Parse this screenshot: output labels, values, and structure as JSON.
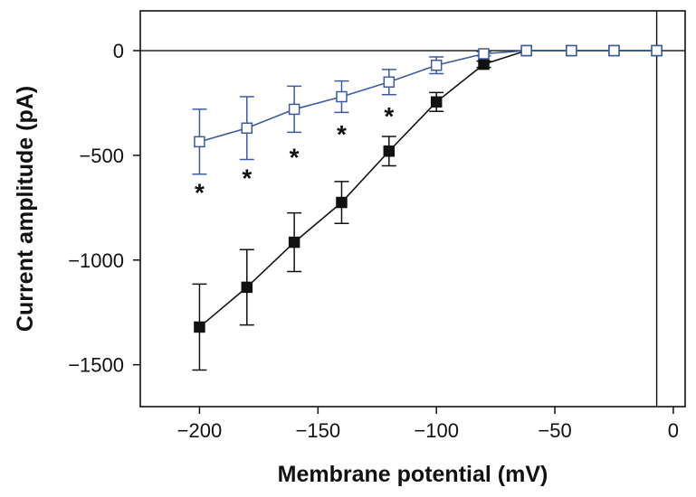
{
  "chart_data": {
    "type": "scatter",
    "title": "",
    "xlabel": "Membrane potential (mV)",
    "ylabel": "Current amplitude (pA)",
    "xlim": [
      -225,
      5
    ],
    "ylim": [
      -1700,
      190
    ],
    "xticks": [
      -200,
      -150,
      -100,
      -50,
      0
    ],
    "yticks": [
      0,
      -500,
      -1000,
      -1500
    ],
    "xtick_labels": [
      "−200",
      "−150",
      "−100",
      "−50",
      "0"
    ],
    "ytick_labels": [
      "0",
      "−500",
      "−1000",
      "−1500"
    ],
    "reference_lines": {
      "y": 0,
      "x": -7
    },
    "grid": false,
    "legend": "none",
    "series": [
      {
        "marker": "filled-square",
        "color": "#111111",
        "x": [
          -200,
          -180,
          -160,
          -140,
          -120,
          -100,
          -80,
          -62,
          -43,
          -25,
          -7
        ],
        "y": [
          -1320,
          -1130,
          -915,
          -725,
          -480,
          -245,
          -65,
          0,
          0,
          0,
          0
        ],
        "err": [
          205,
          180,
          140,
          100,
          70,
          45,
          15,
          0,
          0,
          0,
          0
        ]
      },
      {
        "marker": "open-square",
        "color": "#3d5a9e",
        "x": [
          -200,
          -180,
          -160,
          -140,
          -120,
          -100,
          -80,
          -62,
          -43,
          -25,
          -7
        ],
        "y": [
          -435,
          -370,
          -280,
          -220,
          -150,
          -70,
          -15,
          0,
          0,
          0,
          0
        ],
        "err": [
          155,
          150,
          110,
          75,
          60,
          40,
          10,
          0,
          0,
          0,
          0
        ]
      }
    ],
    "annotations": [
      {
        "text": "*",
        "x": -200,
        "y": -650
      },
      {
        "text": "*",
        "x": -180,
        "y": -580
      },
      {
        "text": "*",
        "x": -160,
        "y": -480
      },
      {
        "text": "*",
        "x": -140,
        "y": -370
      },
      {
        "text": "*",
        "x": -120,
        "y": -285
      }
    ]
  }
}
